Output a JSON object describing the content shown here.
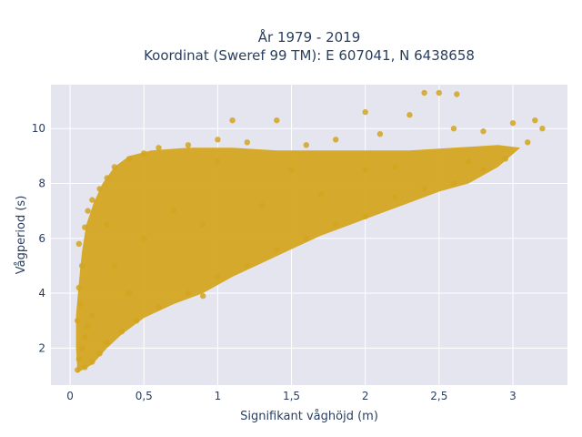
{
  "chart_data": {
    "type": "scatter",
    "title_lines": [
      "År 1979 - 2019",
      "Koordinat (Sweref 99 TM): E 607041, N 6438658"
    ],
    "xlabel": "Signifikant våghöjd (m)",
    "ylabel": "Vågperiod (s)",
    "xlim": [
      -0.13,
      3.37
    ],
    "ylim": [
      0.65,
      11.6
    ],
    "x_ticks": [
      0,
      0.5,
      1,
      1.5,
      2,
      2.5,
      3
    ],
    "x_tick_labels": [
      "0",
      "0,5",
      "1",
      "1,5",
      "2",
      "2,5",
      "3"
    ],
    "y_ticks": [
      2,
      4,
      6,
      8,
      10
    ],
    "y_tick_labels": [
      "2",
      "4",
      "6",
      "8",
      "10"
    ],
    "grid": true,
    "colors": {
      "marker": "#d4a520",
      "plot_bg": "#e5e5f0",
      "grid": "#ffffff"
    },
    "series": [
      {
        "points": [
          [
            0.05,
            1.2
          ],
          [
            0.06,
            1.6
          ],
          [
            0.08,
            2.0
          ],
          [
            0.1,
            2.4
          ],
          [
            0.12,
            2.8
          ],
          [
            0.15,
            3.2
          ],
          [
            0.05,
            3.0
          ],
          [
            0.07,
            3.6
          ],
          [
            0.06,
            4.2
          ],
          [
            0.08,
            5.0
          ],
          [
            0.06,
            5.8
          ],
          [
            0.1,
            6.4
          ],
          [
            0.12,
            7.0
          ],
          [
            0.15,
            7.4
          ],
          [
            0.2,
            7.8
          ],
          [
            0.25,
            8.2
          ],
          [
            0.3,
            8.6
          ],
          [
            0.4,
            8.9
          ],
          [
            0.5,
            9.1
          ],
          [
            0.6,
            9.3
          ],
          [
            0.8,
            9.4
          ],
          [
            1.0,
            9.6
          ],
          [
            1.2,
            9.5
          ],
          [
            1.4,
            10.3
          ],
          [
            1.1,
            10.3
          ],
          [
            1.6,
            9.4
          ],
          [
            1.8,
            9.6
          ],
          [
            2.0,
            10.6
          ],
          [
            2.1,
            9.8
          ],
          [
            2.3,
            10.5
          ],
          [
            2.4,
            11.3
          ],
          [
            2.5,
            11.3
          ],
          [
            2.62,
            11.25
          ],
          [
            2.6,
            10.0
          ],
          [
            2.8,
            9.9
          ],
          [
            3.0,
            10.2
          ],
          [
            3.15,
            10.3
          ],
          [
            3.2,
            10.0
          ],
          [
            3.1,
            9.5
          ],
          [
            2.95,
            8.9
          ],
          [
            2.8,
            8.5
          ],
          [
            2.6,
            8.0
          ],
          [
            2.4,
            7.8
          ],
          [
            2.2,
            7.5
          ],
          [
            2.0,
            6.8
          ],
          [
            1.8,
            6.5
          ],
          [
            1.6,
            6.0
          ],
          [
            1.4,
            5.6
          ],
          [
            1.2,
            5.0
          ],
          [
            1.0,
            4.6
          ],
          [
            0.8,
            4.0
          ],
          [
            0.6,
            3.5
          ],
          [
            0.45,
            3.0
          ],
          [
            0.35,
            2.6
          ],
          [
            0.25,
            2.2
          ],
          [
            0.2,
            1.8
          ],
          [
            0.15,
            1.5
          ],
          [
            0.1,
            1.3
          ],
          [
            1.0,
            8.8
          ],
          [
            1.5,
            8.5
          ],
          [
            2.0,
            8.5
          ],
          [
            0.5,
            6.0
          ],
          [
            0.7,
            7.0
          ],
          [
            0.9,
            6.5
          ],
          [
            1.3,
            7.2
          ],
          [
            1.7,
            7.6
          ],
          [
            2.2,
            8.6
          ],
          [
            2.7,
            8.8
          ],
          [
            0.3,
            5.0
          ],
          [
            0.4,
            4.0
          ],
          [
            0.25,
            6.5
          ],
          [
            0.9,
            3.9
          ]
        ]
      }
    ]
  }
}
